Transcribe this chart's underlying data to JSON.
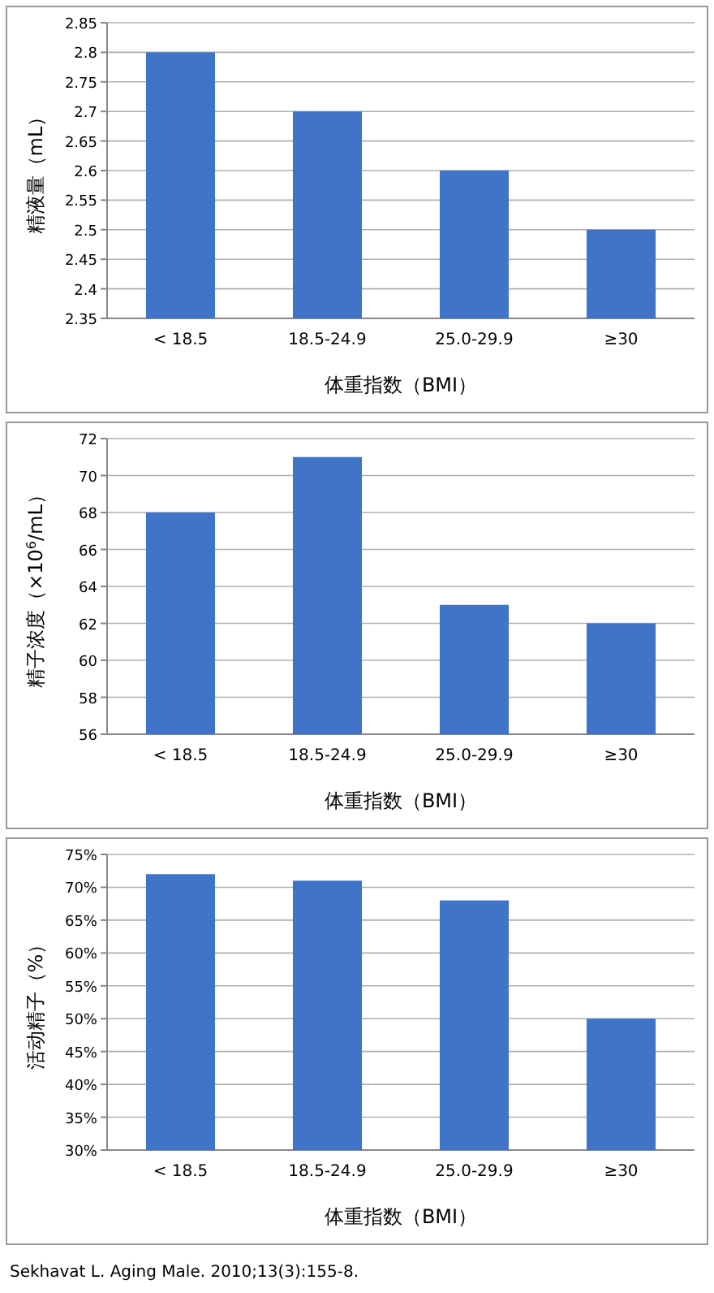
{
  "chart_data": [
    {
      "type": "bar",
      "categories": [
        "< 18.5",
        "18.5-24.9",
        "25.0-29.9",
        "≥30"
      ],
      "values": [
        2.8,
        2.7,
        2.6,
        2.5
      ],
      "color": "#3f74c8",
      "ylim": [
        2.35,
        2.85
      ],
      "yticks": [
        2.35,
        2.4,
        2.45,
        2.5,
        2.55,
        2.6,
        2.65,
        2.7,
        2.75,
        2.8,
        2.85
      ],
      "grid": "y",
      "ylabel": "精液量（mL）",
      "xlabel": "体重指数（BMI）"
    },
    {
      "type": "bar",
      "categories": [
        "< 18.5",
        "18.5-24.9",
        "25.0-29.9",
        "≥30"
      ],
      "values": [
        68,
        71,
        63,
        62
      ],
      "color": "#3f74c8",
      "ylim": [
        56,
        72
      ],
      "yticks": [
        56,
        58,
        60,
        62,
        64,
        66,
        68,
        70,
        72
      ],
      "grid": "y",
      "ylabel": "精子浓度（×10$^{6}$/mL）",
      "xlabel": "体重指数（BMI）"
    },
    {
      "type": "bar",
      "categories": [
        "< 18.5",
        "18.5-24.9",
        "25.0-29.9",
        "≥30"
      ],
      "values": [
        72,
        71,
        68,
        50
      ],
      "color": "#3f74c8",
      "ylim": [
        30,
        75
      ],
      "yticks": [
        {
          "value": 30,
          "label": "30%"
        },
        {
          "value": 35,
          "label": "35%"
        },
        {
          "value": 40,
          "label": "40%"
        },
        {
          "value": 45,
          "label": "45%"
        },
        {
          "value": 50,
          "label": "50%"
        },
        {
          "value": 55,
          "label": "55%"
        },
        {
          "value": 60,
          "label": "60%"
        },
        {
          "value": 65,
          "label": "65%"
        },
        {
          "value": 70,
          "label": "70%"
        },
        {
          "value": 75,
          "label": "75%"
        }
      ],
      "grid": "y",
      "ylabel": "活动精子（%）",
      "xlabel": "体重指数（BMI）",
      "annotations": [
        "Sekhavat L. Aging Male. 2010;13(3):155-8."
      ]
    }
  ]
}
